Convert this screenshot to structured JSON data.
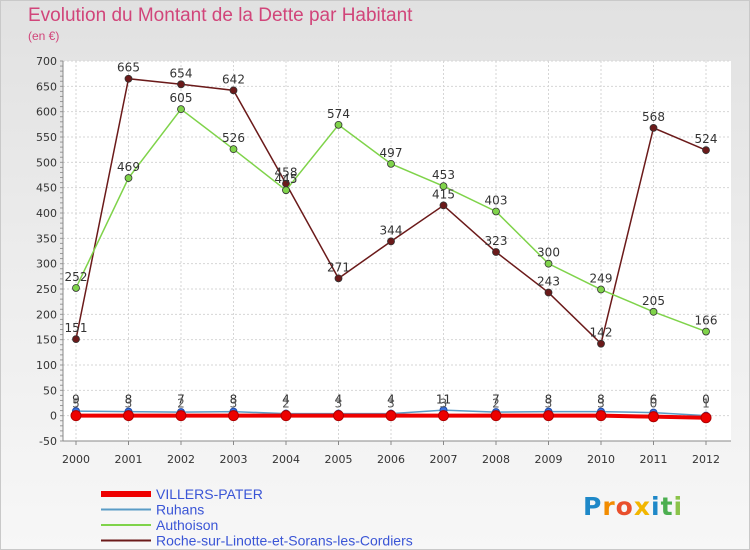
{
  "chart_data": {
    "type": "line",
    "title": "Evolution du Montant de la Dette par Habitant",
    "subtitle": "(en €)",
    "x": [
      "2000",
      "2001",
      "2002",
      "2003",
      "2004",
      "2005",
      "2006",
      "2007",
      "2008",
      "2009",
      "2010",
      "2011",
      "2012"
    ],
    "yticks": [
      -50,
      0,
      50,
      100,
      150,
      200,
      250,
      300,
      350,
      400,
      450,
      500,
      550,
      600,
      650,
      700
    ],
    "ylim": [
      -50,
      700
    ],
    "grid": true,
    "legend_position": "bottom-left",
    "series": [
      {
        "name": "VILLERS-PATER",
        "color": "#ee0000",
        "values": [
          0,
          0,
          0,
          0,
          0,
          0,
          0,
          0,
          0,
          0,
          0,
          -2,
          -4
        ]
      },
      {
        "name": "Ruhans",
        "color": "#5a9cc6",
        "values": [
          9,
          8,
          7,
          8,
          4,
          4,
          4,
          11,
          7,
          8,
          8,
          6,
          0
        ]
      },
      {
        "name": "Authoison",
        "color": "#7fd34a",
        "values": [
          252,
          469,
          605,
          526,
          445,
          574,
          497,
          453,
          403,
          300,
          249,
          205,
          166
        ]
      },
      {
        "name": "Roche-sur-Linotte-et-Sorans-les-Cordiers",
        "color": "#6b1a1a",
        "values": [
          151,
          665,
          654,
          642,
          458,
          271,
          344,
          415,
          323,
          243,
          142,
          568,
          524
        ]
      }
    ],
    "value_labels": {
      "Ruhans": [
        "9",
        "8",
        "7",
        "8",
        "4",
        "4",
        "4",
        "11",
        "7",
        "8",
        "8",
        "6",
        "0"
      ],
      "Authoison": [
        "252",
        "469",
        "605",
        "526",
        "445",
        "574",
        "497",
        "453",
        "403",
        "300",
        "249",
        "205",
        "166"
      ],
      "Roche-sur-Linotte-et-Sorans-les-Cordiers": [
        "151",
        "665",
        "654",
        "642",
        "458",
        "271",
        "344",
        "415",
        "323",
        "243",
        "142",
        "568",
        "524"
      ],
      "bottom": [
        "5",
        "3",
        "2",
        "3",
        "2",
        "3",
        "3",
        "3",
        "2",
        "3",
        "3",
        "0",
        "1"
      ]
    }
  },
  "logo": {
    "letters": [
      "P",
      "r",
      "o",
      "x",
      "i",
      "t",
      "i"
    ],
    "colors": [
      "#1e88c8",
      "#f28c00",
      "#e94f2c",
      "#f2b600",
      "#1e88c8",
      "#4caf50",
      "#8bc34a"
    ]
  }
}
